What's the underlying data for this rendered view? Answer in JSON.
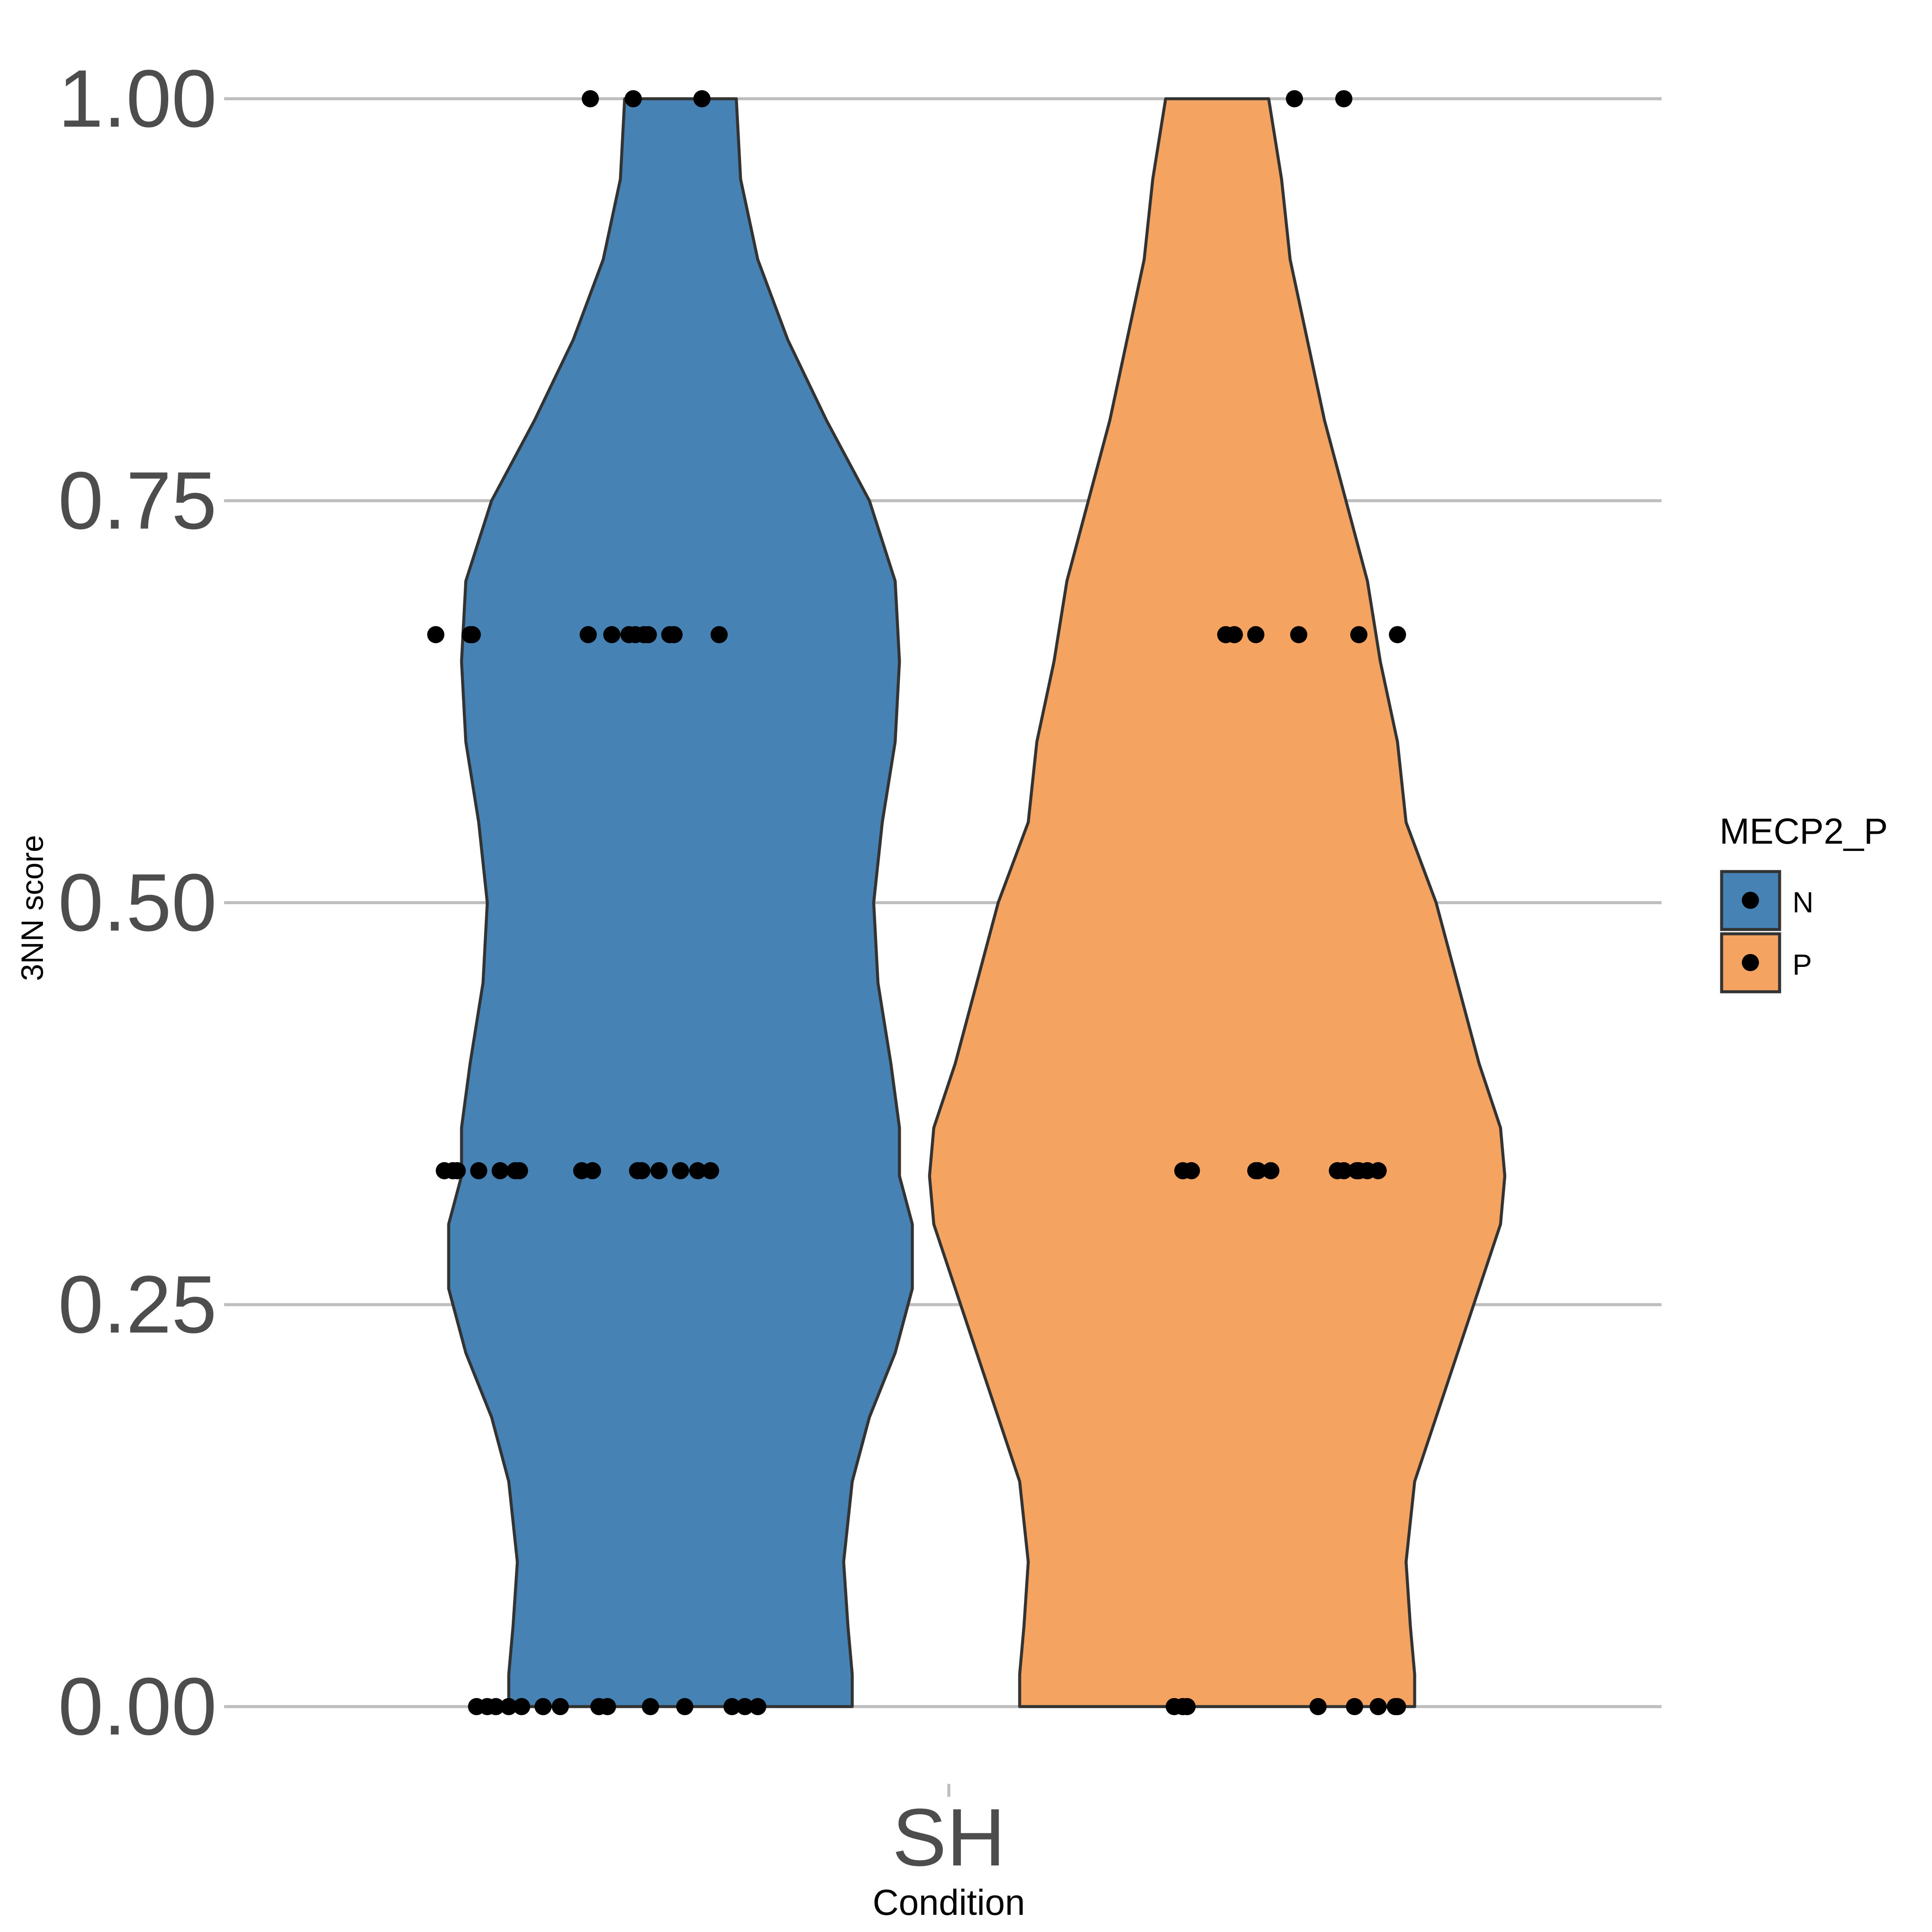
{
  "chart_data": {
    "type": "violin",
    "title": "",
    "xlabel": "Condition",
    "ylabel": "3NN score",
    "ylim": [
      0,
      1
    ],
    "y_ticks": [
      {
        "value": 0.0,
        "label": "0.00"
      },
      {
        "value": 0.25,
        "label": "0.25"
      },
      {
        "value": 0.5,
        "label": "0.50"
      },
      {
        "value": 0.75,
        "label": "0.75"
      },
      {
        "value": 1.0,
        "label": "1.00"
      }
    ],
    "categories": [
      "SH"
    ],
    "grid": "horizontal major",
    "legend": {
      "title": "MECP2_P",
      "position": "right",
      "entries": [
        {
          "label": "N",
          "color": "#4682B4"
        },
        {
          "label": "P",
          "color": "#F4A460"
        }
      ]
    },
    "series": [
      {
        "name": "N",
        "color": "#4682B4",
        "density": [
          [
            0.0,
            0.4
          ],
          [
            0.02,
            0.4
          ],
          [
            0.05,
            0.39
          ],
          [
            0.09,
            0.38
          ],
          [
            0.14,
            0.4
          ],
          [
            0.18,
            0.44
          ],
          [
            0.22,
            0.5
          ],
          [
            0.26,
            0.54
          ],
          [
            0.3,
            0.54
          ],
          [
            0.33,
            0.51
          ],
          [
            0.36,
            0.51
          ],
          [
            0.4,
            0.49
          ],
          [
            0.45,
            0.46
          ],
          [
            0.5,
            0.45
          ],
          [
            0.55,
            0.47
          ],
          [
            0.6,
            0.5
          ],
          [
            0.65,
            0.51
          ],
          [
            0.7,
            0.5
          ],
          [
            0.75,
            0.44
          ],
          [
            0.8,
            0.34
          ],
          [
            0.85,
            0.25
          ],
          [
            0.9,
            0.18
          ],
          [
            0.95,
            0.14
          ],
          [
            1.0,
            0.13
          ]
        ],
        "points": [
          {
            "y": 0,
            "offsets": [
              -0.475,
              -0.45,
              -0.43,
              -0.4,
              -0.37,
              -0.32,
              -0.28,
              -0.19,
              -0.17,
              -0.07,
              0.01,
              0.12,
              0.15,
              0.18
            ]
          },
          {
            "y": 0.3333,
            "offsets": [
              -0.55,
              -0.53,
              -0.52,
              -0.47,
              -0.42,
              -0.385,
              -0.375,
              -0.23,
              -0.205,
              -0.1,
              -0.09,
              -0.05,
              0.0,
              0.04,
              0.07
            ]
          },
          {
            "y": 0.6667,
            "offsets": [
              -0.57,
              -0.49,
              -0.485,
              -0.215,
              -0.16,
              -0.12,
              -0.105,
              -0.085,
              -0.075,
              -0.025,
              -0.015,
              0.09
            ]
          },
          {
            "y": 1,
            "offsets": [
              -0.21,
              -0.11,
              0.05
            ]
          }
        ]
      },
      {
        "name": "P",
        "color": "#F4A460",
        "density": [
          [
            0.0,
            0.46
          ],
          [
            0.02,
            0.46
          ],
          [
            0.05,
            0.45
          ],
          [
            0.09,
            0.44
          ],
          [
            0.14,
            0.46
          ],
          [
            0.18,
            0.51
          ],
          [
            0.22,
            0.56
          ],
          [
            0.26,
            0.61
          ],
          [
            0.3,
            0.66
          ],
          [
            0.33,
            0.67
          ],
          [
            0.36,
            0.66
          ],
          [
            0.4,
            0.61
          ],
          [
            0.45,
            0.56
          ],
          [
            0.5,
            0.51
          ],
          [
            0.55,
            0.44
          ],
          [
            0.6,
            0.42
          ],
          [
            0.65,
            0.38
          ],
          [
            0.7,
            0.35
          ],
          [
            0.75,
            0.3
          ],
          [
            0.8,
            0.25
          ],
          [
            0.85,
            0.21
          ],
          [
            0.9,
            0.17
          ],
          [
            0.95,
            0.15
          ],
          [
            1.0,
            0.12
          ]
        ],
        "points": [
          {
            "y": 0,
            "offsets": [
              -0.1,
              -0.08,
              -0.07,
              0.235,
              0.32,
              0.375,
              0.415,
              0.42
            ]
          },
          {
            "y": 0.3333,
            "offsets": [
              -0.08,
              -0.06,
              0.09,
              0.095,
              0.125,
              0.28,
              0.295,
              0.325,
              0.33,
              0.35,
              0.375
            ]
          },
          {
            "y": 0.6667,
            "offsets": [
              0.02,
              0.04,
              0.09,
              0.19,
              0.33,
              0.42
            ]
          },
          {
            "y": 1,
            "offsets": [
              0.18,
              0.295
            ]
          }
        ]
      }
    ]
  }
}
